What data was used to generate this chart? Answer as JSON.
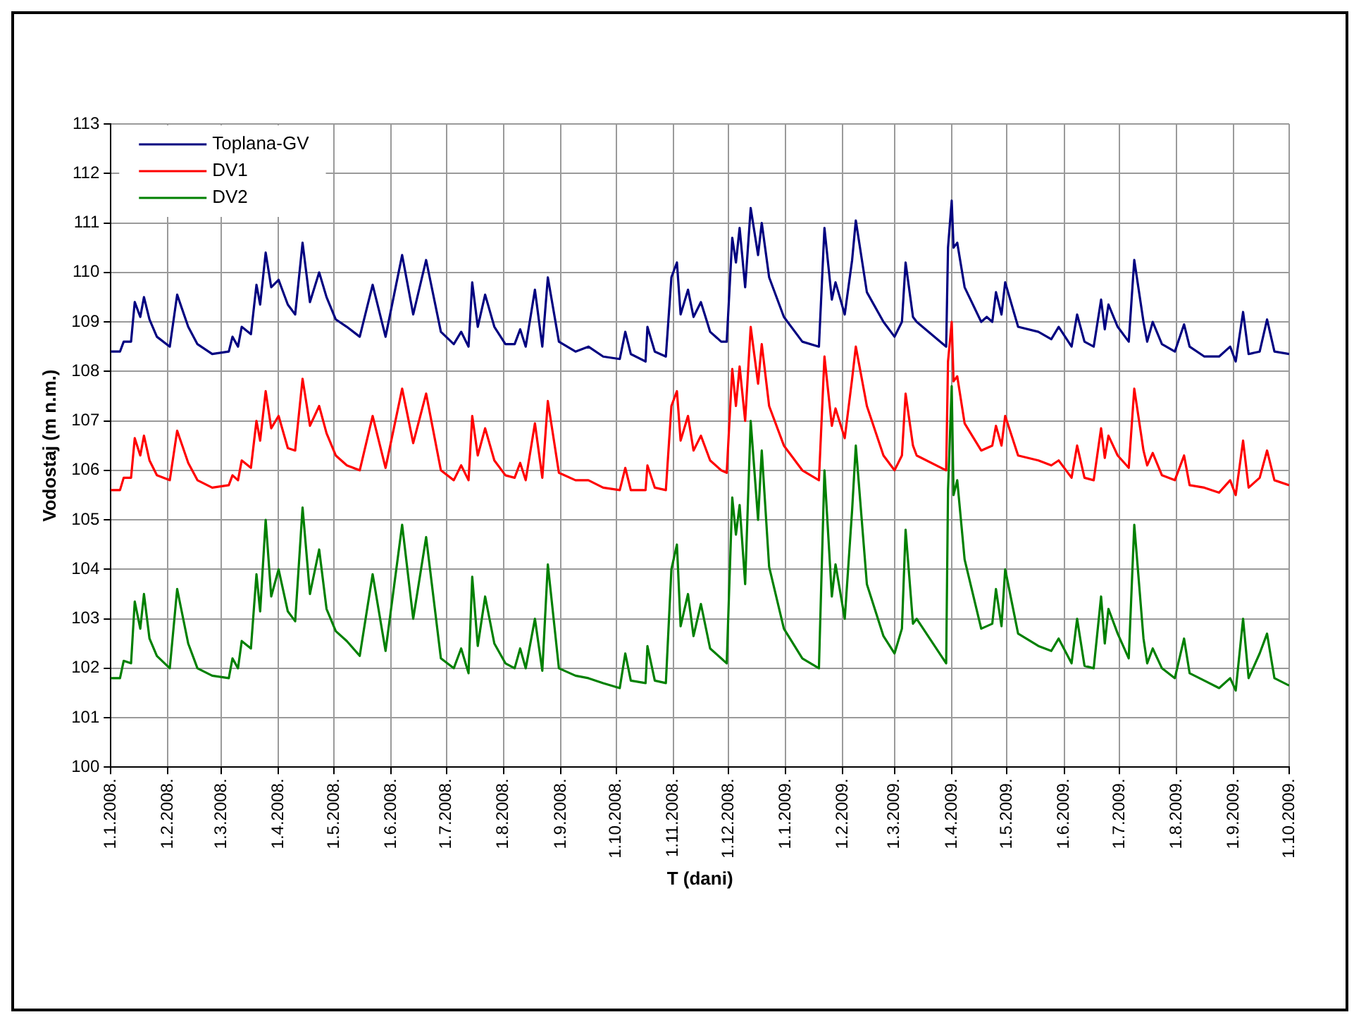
{
  "chart_data": {
    "type": "line",
    "xlabel": "T (dani)",
    "ylabel": "Vodostaj (m n.m.)",
    "x": [
      "2008-01-01",
      "2008-01-06",
      "2008-01-08",
      "2008-01-12",
      "2008-01-14",
      "2008-01-17",
      "2008-01-19",
      "2008-01-22",
      "2008-01-26",
      "2008-02-02",
      "2008-02-06",
      "2008-02-12",
      "2008-02-17",
      "2008-02-25",
      "2008-03-05",
      "2008-03-07",
      "2008-03-10",
      "2008-03-12",
      "2008-03-17",
      "2008-03-20",
      "2008-03-22",
      "2008-03-25",
      "2008-03-28",
      "2008-04-01",
      "2008-04-06",
      "2008-04-10",
      "2008-04-14",
      "2008-04-18",
      "2008-04-23",
      "2008-04-27",
      "2008-05-02",
      "2008-05-08",
      "2008-05-15",
      "2008-05-22",
      "2008-05-29",
      "2008-06-07",
      "2008-06-13",
      "2008-06-20",
      "2008-06-28",
      "2008-07-05",
      "2008-07-09",
      "2008-07-13",
      "2008-07-15",
      "2008-07-18",
      "2008-07-22",
      "2008-07-27",
      "2008-08-02",
      "2008-08-07",
      "2008-08-10",
      "2008-08-13",
      "2008-08-18",
      "2008-08-22",
      "2008-08-25",
      "2008-08-31",
      "2008-09-09",
      "2008-09-16",
      "2008-09-24",
      "2008-10-03",
      "2008-10-06",
      "2008-10-09",
      "2008-10-17",
      "2008-10-18",
      "2008-10-22",
      "2008-10-28",
      "2008-10-31",
      "2008-11-03",
      "2008-11-05",
      "2008-11-09",
      "2008-11-12",
      "2008-11-16",
      "2008-11-21",
      "2008-11-27",
      "2008-11-30",
      "2008-12-03",
      "2008-12-05",
      "2008-12-07",
      "2008-12-10",
      "2008-12-13",
      "2008-12-17",
      "2008-12-19",
      "2008-12-23",
      "2008-12-31",
      "2009-01-10",
      "2009-01-19",
      "2009-01-22",
      "2009-01-26",
      "2009-01-28",
      "2009-02-02",
      "2009-02-06",
      "2009-02-08",
      "2009-02-14",
      "2009-02-23",
      "2009-03-01",
      "2009-03-05",
      "2009-03-07",
      "2009-03-11",
      "2009-03-13",
      "2009-03-29",
      "2009-03-30",
      "2009-04-01",
      "2009-04-02",
      "2009-04-04",
      "2009-04-08",
      "2009-04-17",
      "2009-04-20",
      "2009-04-23",
      "2009-04-25",
      "2009-04-28",
      "2009-04-30",
      "2009-05-07",
      "2009-05-18",
      "2009-05-25",
      "2009-05-29",
      "2009-06-05",
      "2009-06-08",
      "2009-06-12",
      "2009-06-17",
      "2009-06-21",
      "2009-06-23",
      "2009-06-25",
      "2009-06-30",
      "2009-07-06",
      "2009-07-09",
      "2009-07-14",
      "2009-07-16",
      "2009-07-19",
      "2009-07-24",
      "2009-07-31",
      "2009-08-05",
      "2009-08-08",
      "2009-08-16",
      "2009-08-24",
      "2009-08-30",
      "2009-09-02",
      "2009-09-06",
      "2009-09-09",
      "2009-09-15",
      "2009-09-19",
      "2009-09-23",
      "2009-10-01"
    ],
    "series": [
      {
        "name": "Toplana-GV",
        "color": "#000080",
        "values": [
          108.4,
          108.4,
          108.6,
          108.6,
          109.4,
          109.1,
          109.5,
          109.05,
          108.7,
          108.5,
          109.55,
          108.9,
          108.55,
          108.35,
          108.4,
          108.7,
          108.5,
          108.9,
          108.75,
          109.75,
          109.35,
          110.4,
          109.7,
          109.85,
          109.35,
          109.15,
          110.6,
          109.4,
          110.0,
          109.5,
          109.05,
          108.9,
          108.7,
          109.75,
          108.7,
          110.35,
          109.15,
          110.25,
          108.8,
          108.55,
          108.8,
          108.5,
          109.8,
          108.9,
          109.55,
          108.9,
          108.55,
          108.55,
          108.85,
          108.5,
          109.65,
          108.5,
          109.9,
          108.6,
          108.4,
          108.5,
          108.3,
          108.25,
          108.8,
          108.35,
          108.2,
          108.9,
          108.4,
          108.3,
          109.9,
          110.2,
          109.15,
          109.65,
          109.1,
          109.4,
          108.8,
          108.6,
          108.6,
          110.7,
          110.2,
          110.9,
          109.7,
          111.3,
          110.35,
          111.0,
          109.9,
          109.1,
          108.6,
          108.5,
          110.9,
          109.45,
          109.8,
          109.15,
          110.25,
          111.05,
          109.6,
          109.0,
          108.7,
          109.0,
          110.2,
          109.1,
          109.0,
          108.5,
          110.5,
          111.45,
          110.5,
          110.6,
          109.7,
          109.0,
          109.1,
          109.0,
          109.6,
          109.15,
          109.8,
          108.9,
          108.8,
          108.65,
          108.9,
          108.5,
          109.15,
          108.6,
          108.5,
          109.45,
          108.85,
          109.35,
          108.9,
          108.6,
          110.25,
          109.0,
          108.6,
          109.0,
          108.55,
          108.4,
          108.95,
          108.5,
          108.3,
          108.3,
          108.5,
          108.2,
          109.2,
          108.35,
          108.4,
          109.05,
          108.4,
          108.35
        ]
      },
      {
        "name": "DV1",
        "color": "#ff0000",
        "values": [
          105.6,
          105.6,
          105.85,
          105.85,
          106.65,
          106.3,
          106.7,
          106.2,
          105.9,
          105.8,
          106.8,
          106.15,
          105.8,
          105.65,
          105.7,
          105.9,
          105.8,
          106.2,
          106.05,
          107.0,
          106.6,
          107.6,
          106.85,
          107.1,
          106.45,
          106.4,
          107.85,
          106.9,
          107.3,
          106.75,
          106.3,
          106.1,
          106.0,
          107.1,
          106.05,
          107.65,
          106.55,
          107.55,
          106.0,
          105.8,
          106.1,
          105.8,
          107.1,
          106.3,
          106.85,
          106.2,
          105.9,
          105.85,
          106.15,
          105.8,
          106.95,
          105.85,
          107.4,
          105.95,
          105.8,
          105.8,
          105.65,
          105.6,
          106.05,
          105.6,
          105.6,
          106.1,
          105.65,
          105.6,
          107.3,
          107.6,
          106.6,
          107.1,
          106.4,
          106.7,
          106.2,
          106.0,
          105.95,
          108.05,
          107.3,
          108.1,
          107.0,
          108.9,
          107.75,
          108.55,
          107.3,
          106.5,
          106.0,
          105.8,
          108.3,
          106.9,
          107.25,
          106.65,
          107.85,
          108.5,
          107.3,
          106.3,
          106.0,
          106.3,
          107.55,
          106.5,
          106.3,
          106.0,
          108.2,
          109.0,
          107.8,
          107.9,
          106.95,
          106.4,
          106.45,
          106.5,
          106.9,
          106.5,
          107.1,
          106.3,
          106.2,
          106.1,
          106.2,
          105.85,
          106.5,
          105.85,
          105.8,
          106.85,
          106.25,
          106.7,
          106.3,
          106.05,
          107.65,
          106.4,
          106.1,
          106.35,
          105.9,
          105.8,
          106.3,
          105.7,
          105.65,
          105.55,
          105.8,
          105.5,
          106.6,
          105.65,
          105.85,
          106.4,
          105.8,
          105.7
        ]
      },
      {
        "name": "DV2",
        "color": "#008000",
        "values": [
          101.8,
          101.8,
          102.15,
          102.1,
          103.35,
          102.8,
          103.5,
          102.6,
          102.25,
          102.0,
          103.6,
          102.5,
          102.0,
          101.85,
          101.8,
          102.2,
          102.0,
          102.55,
          102.4,
          103.9,
          103.15,
          105.0,
          103.45,
          104.0,
          103.15,
          102.95,
          105.25,
          103.5,
          104.4,
          103.2,
          102.75,
          102.55,
          102.25,
          103.9,
          102.35,
          104.9,
          103.0,
          104.65,
          102.2,
          102.0,
          102.4,
          101.9,
          103.85,
          102.45,
          103.45,
          102.5,
          102.1,
          102.0,
          102.4,
          102.0,
          103.0,
          101.95,
          104.1,
          102.0,
          101.85,
          101.8,
          101.7,
          101.6,
          102.3,
          101.75,
          101.7,
          102.45,
          101.75,
          101.7,
          104.0,
          104.5,
          102.85,
          103.5,
          102.65,
          103.3,
          102.4,
          102.2,
          102.1,
          105.45,
          104.7,
          105.3,
          103.7,
          107.0,
          105.0,
          106.4,
          104.05,
          102.8,
          102.2,
          102.0,
          106.0,
          103.45,
          104.1,
          103.0,
          105.2,
          106.5,
          103.7,
          102.65,
          102.3,
          102.8,
          104.8,
          102.9,
          103.0,
          102.1,
          105.6,
          107.7,
          105.5,
          105.8,
          104.2,
          102.8,
          102.85,
          102.9,
          103.6,
          102.85,
          104.0,
          102.7,
          102.45,
          102.35,
          102.6,
          102.1,
          103.0,
          102.05,
          102.0,
          103.45,
          102.5,
          103.2,
          102.7,
          102.2,
          104.9,
          102.6,
          102.1,
          102.4,
          102.0,
          101.8,
          102.6,
          101.9,
          101.75,
          101.6,
          101.8,
          101.55,
          103.0,
          101.8,
          102.3,
          102.7,
          101.8,
          101.65
        ]
      }
    ],
    "xlim": [
      "2008-01-01",
      "2009-10-01"
    ],
    "xticks": [
      {
        "value": "2008-01-01",
        "label": "1.1.2008."
      },
      {
        "value": "2008-02-01",
        "label": "1.2.2008."
      },
      {
        "value": "2008-03-01",
        "label": "1.3.2008."
      },
      {
        "value": "2008-04-01",
        "label": "1.4.2008."
      },
      {
        "value": "2008-05-01",
        "label": "1.5.2008."
      },
      {
        "value": "2008-06-01",
        "label": "1.6.2008."
      },
      {
        "value": "2008-07-01",
        "label": "1.7.2008."
      },
      {
        "value": "2008-08-01",
        "label": "1.8.2008."
      },
      {
        "value": "2008-09-01",
        "label": "1.9.2008."
      },
      {
        "value": "2008-10-01",
        "label": "1.10.2008."
      },
      {
        "value": "2008-11-01",
        "label": "1.11.2008."
      },
      {
        "value": "2008-12-01",
        "label": "1.12.2008."
      },
      {
        "value": "2009-01-01",
        "label": "1.1.2009."
      },
      {
        "value": "2009-02-01",
        "label": "1.2.2009."
      },
      {
        "value": "2009-03-01",
        "label": "1.3.2009."
      },
      {
        "value": "2009-04-01",
        "label": "1.4.2009."
      },
      {
        "value": "2009-05-01",
        "label": "1.5.2009."
      },
      {
        "value": "2009-06-01",
        "label": "1.6.2009."
      },
      {
        "value": "2009-07-01",
        "label": "1.7.2009."
      },
      {
        "value": "2009-08-01",
        "label": "1.8.2009."
      },
      {
        "value": "2009-09-01",
        "label": "1.9.2009."
      },
      {
        "value": "2009-10-01",
        "label": "1.10.2009."
      }
    ],
    "ylim": [
      100,
      113
    ],
    "yticks": [
      100,
      101,
      102,
      103,
      104,
      105,
      106,
      107,
      108,
      109,
      110,
      111,
      112,
      113
    ],
    "grid": true,
    "legend": "top left",
    "marker": "none",
    "line_style": "solid"
  }
}
